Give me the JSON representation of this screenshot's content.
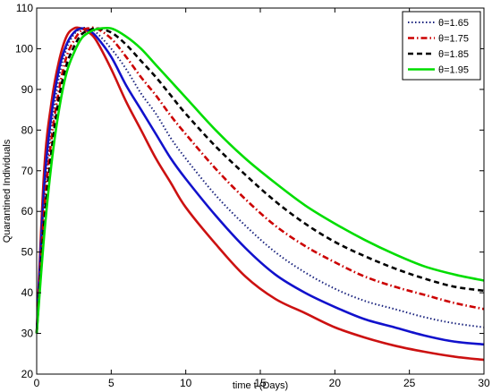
{
  "chart_data": {
    "type": "line",
    "title": "",
    "xlabel": "time t (Days)",
    "ylabel": "Quarantined Individuals",
    "xlim": [
      0,
      30
    ],
    "ylim": [
      20,
      110
    ],
    "xticks": [
      0,
      5,
      10,
      15,
      20,
      25,
      30
    ],
    "yticks": [
      20,
      30,
      40,
      50,
      60,
      70,
      80,
      90,
      100,
      110
    ],
    "grid": false,
    "legend_position": "top-right",
    "legend": [
      {
        "label": "θ=1.65",
        "color": "#1a237e",
        "style": "dotted"
      },
      {
        "label": "θ=1.75",
        "color": "#cc0000",
        "style": "dashdot"
      },
      {
        "label": "θ=1.85",
        "color": "#000000",
        "style": "dashed"
      },
      {
        "label": "θ=1.95",
        "color": "#00dd00",
        "style": "solid"
      }
    ],
    "series": [
      {
        "color": "#cc1111",
        "style": "solid",
        "x": [
          0,
          0.5,
          1,
          1.5,
          2,
          2.5,
          3,
          3.5,
          4,
          5,
          6,
          7,
          8,
          9,
          10,
          12,
          14,
          16,
          18,
          20,
          22,
          24,
          26,
          28,
          30
        ],
        "y": [
          30,
          70,
          87,
          97,
          103,
          105,
          105,
          104,
          102,
          95,
          87,
          80,
          73,
          67,
          61,
          52,
          44,
          38.5,
          35,
          31.5,
          29,
          27,
          25.5,
          24.3,
          23.5
        ]
      },
      {
        "color": "#1111cc",
        "style": "solid",
        "x": [
          0,
          0.5,
          1,
          1.5,
          2,
          2.5,
          3,
          3.5,
          4,
          5,
          6,
          7,
          8,
          9,
          10,
          12,
          14,
          16,
          18,
          20,
          22,
          24,
          26,
          28,
          30
        ],
        "y": [
          30,
          66,
          84,
          95,
          101,
          104,
          105,
          104.5,
          103,
          98,
          91,
          85,
          79,
          73,
          68,
          59,
          51,
          44.5,
          40,
          36.5,
          33.5,
          31.5,
          29.5,
          28,
          27.3
        ]
      },
      {
        "name": "θ=1.65",
        "color": "#1a237e",
        "style": "dotted",
        "x": [
          0,
          0.5,
          1,
          1.5,
          2,
          2.5,
          3,
          3.5,
          4,
          5,
          6,
          7,
          8,
          9,
          10,
          12,
          14,
          16,
          18,
          20,
          22,
          24,
          26,
          28,
          30
        ],
        "y": [
          30,
          63,
          81,
          93,
          100,
          103.5,
          105,
          105,
          104,
          100,
          95,
          89,
          84,
          78,
          73,
          64,
          56.5,
          50,
          45,
          41,
          38,
          36,
          34,
          32.5,
          31.5
        ]
      },
      {
        "name": "θ=1.75",
        "color": "#cc0000",
        "style": "dashdot",
        "x": [
          0,
          0.5,
          1,
          1.5,
          2,
          2.5,
          3,
          3.5,
          4,
          5,
          6,
          7,
          8,
          9,
          10,
          12,
          14,
          16,
          18,
          20,
          22,
          24,
          26,
          28,
          30
        ],
        "y": [
          30,
          60,
          78,
          90,
          98,
          102,
          104.5,
          105,
          105,
          102.5,
          98,
          93,
          88.5,
          83.5,
          79,
          70.5,
          63,
          56.5,
          51.5,
          47.5,
          44,
          41.5,
          39.5,
          37.5,
          36
        ]
      },
      {
        "name": "θ=1.85",
        "color": "#000000",
        "style": "dashed",
        "x": [
          0,
          0.5,
          1,
          1.5,
          2,
          2.5,
          3,
          3.5,
          4,
          5,
          6,
          7,
          8,
          9,
          10,
          12,
          14,
          16,
          18,
          20,
          22,
          24,
          26,
          28,
          30
        ],
        "y": [
          30,
          57,
          75,
          88,
          96,
          100.5,
          103.5,
          104.5,
          105,
          104,
          101,
          97,
          93,
          88.5,
          84,
          76,
          69,
          62.5,
          57,
          52.5,
          49,
          46,
          43.5,
          41.5,
          40.5
        ]
      },
      {
        "name": "θ=1.95",
        "color": "#00dd00",
        "style": "solid",
        "x": [
          0,
          0.5,
          1,
          1.5,
          2,
          2.5,
          3,
          3.5,
          4,
          5,
          6,
          7,
          8,
          9,
          10,
          12,
          14,
          16,
          18,
          20,
          22,
          24,
          26,
          28,
          30
        ],
        "y": [
          30,
          54,
          72,
          85,
          94,
          99,
          102.5,
          104,
          104.8,
          105,
          103,
          100,
          96,
          92,
          88,
          80,
          73,
          67,
          61.5,
          57,
          53,
          49.5,
          46.5,
          44.5,
          43
        ]
      }
    ]
  }
}
